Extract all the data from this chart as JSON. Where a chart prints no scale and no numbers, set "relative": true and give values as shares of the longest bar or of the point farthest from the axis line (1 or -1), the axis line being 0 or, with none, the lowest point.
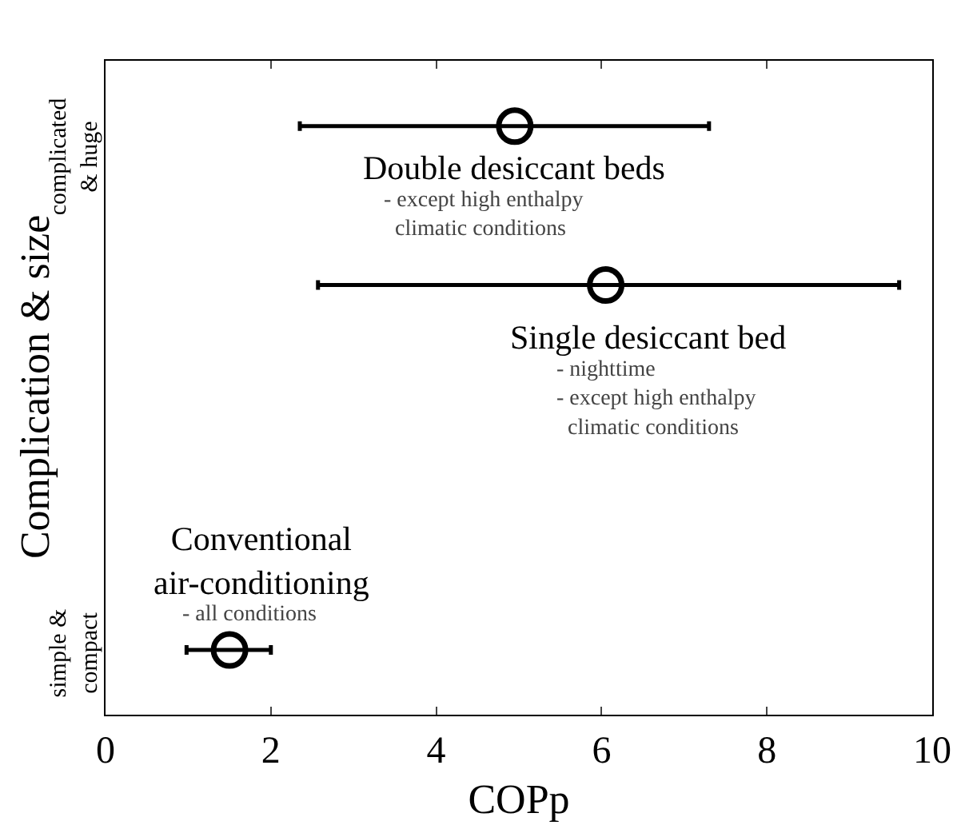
{
  "chart_data": {
    "type": "scatter",
    "relative": true,
    "xlabel": "COPp",
    "ylabel": "Complication & size",
    "x": [
      1.5,
      6.05,
      4.95
    ],
    "series": [
      {
        "color": "#000000",
        "values": [
          0.11,
          0.73,
          1
        ],
        "xerrors": [
          [
            0.98,
            2.0
          ],
          [
            2.57,
            9.6
          ],
          [
            2.35,
            7.3
          ]
        ]
      }
    ],
    "xlim": [
      0,
      10
    ],
    "xticks": [
      0,
      2,
      4,
      6,
      8,
      10
    ],
    "marker": "circle",
    "grid": false,
    "annotations": [
      "Conventional\nair-conditioning",
      "- all conditions",
      "Single desiccant bed",
      "- nighttime\n- except high enthalpy\n  climatic conditions",
      "Double desiccant beds",
      "- except high enthalpy\n  climatic conditions",
      "simple &\ncompact",
      "complicated\n& huge"
    ]
  }
}
